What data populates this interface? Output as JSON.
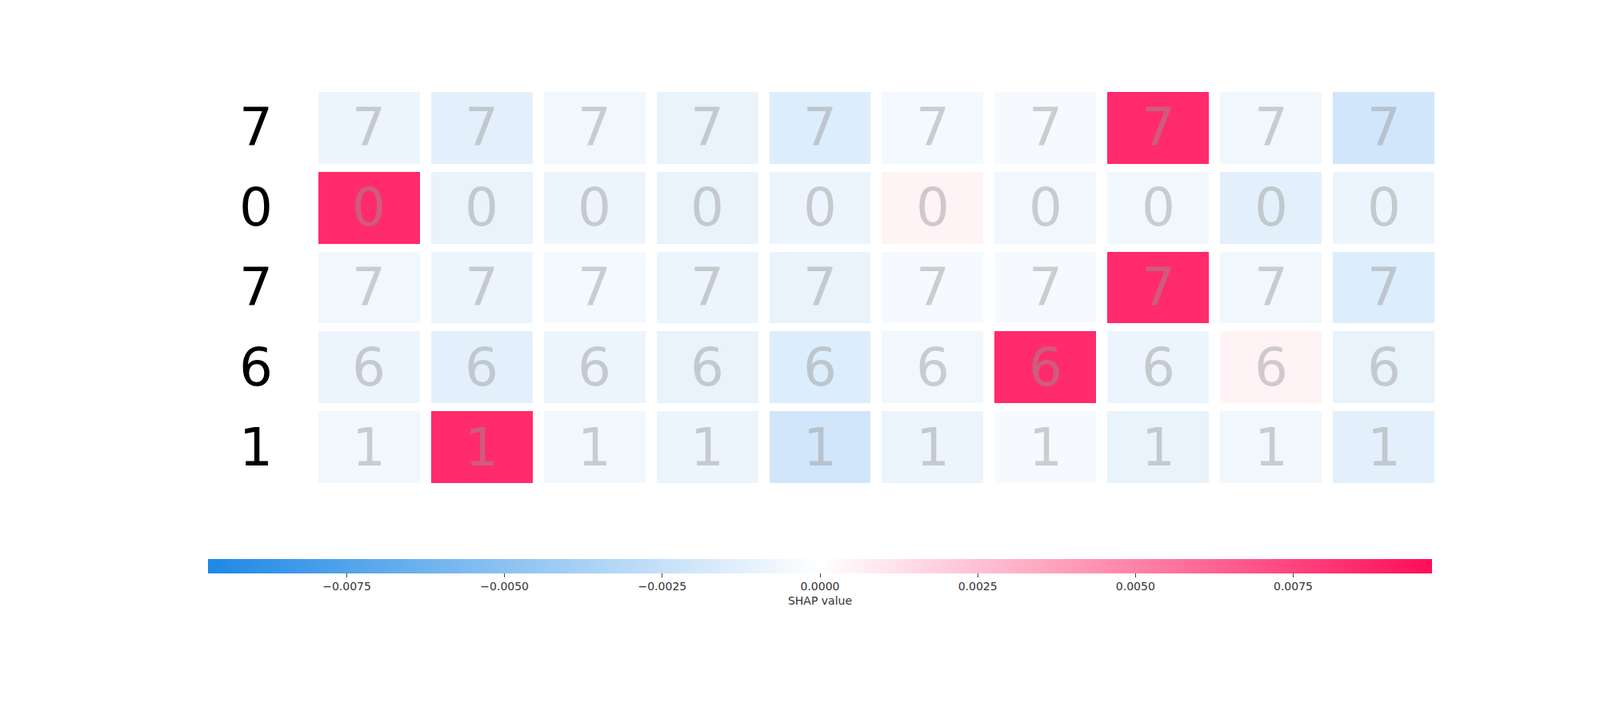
{
  "chart_data": {
    "type": "heatmap",
    "input_digits": [
      "7",
      "0",
      "7",
      "6",
      "1"
    ],
    "categories": [
      null,
      null,
      null,
      null,
      null,
      null,
      null,
      null,
      null,
      null
    ],
    "values": [
      [
        -0.0008,
        -0.0012,
        -0.0006,
        -0.001,
        -0.0015,
        -0.0005,
        -0.0004,
        0.0085,
        -0.0006,
        -0.002
      ],
      [
        0.0085,
        -0.001,
        -0.0008,
        -0.001,
        -0.0008,
        0.0005,
        -0.0006,
        -0.0006,
        -0.0012,
        -0.0008
      ],
      [
        -0.0006,
        -0.0008,
        -0.0005,
        -0.0008,
        -0.001,
        -0.0004,
        -0.0004,
        0.0085,
        -0.0006,
        -0.0015
      ],
      [
        -0.0008,
        -0.0012,
        -0.0008,
        -0.001,
        -0.0015,
        -0.0006,
        0.0085,
        -0.0008,
        0.0005,
        -0.001
      ],
      [
        -0.0006,
        0.0085,
        -0.0006,
        -0.0008,
        -0.002,
        -0.0008,
        -0.0004,
        -0.001,
        -0.0006,
        -0.0012
      ]
    ],
    "tick_labels": false,
    "colorbar": {
      "label": "SHAP value",
      "range": [
        -0.0097,
        0.0097
      ],
      "ticks": [
        {
          "value": -0.0075,
          "label": "−0.0075"
        },
        {
          "value": -0.005,
          "label": "−0.0050"
        },
        {
          "value": -0.0025,
          "label": "−0.0025"
        },
        {
          "value": 0,
          "label": "0.0000"
        },
        0.0025,
        {
          "value": 0.005,
          "label": "0.0050"
        },
        0.0075
      ]
    }
  }
}
